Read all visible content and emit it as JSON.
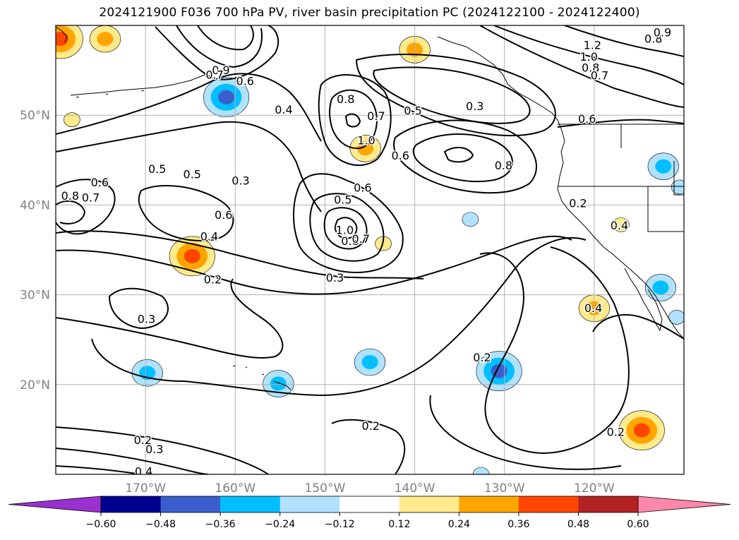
{
  "chart_data": {
    "type": "contour-map",
    "title": "2024121900 F036 700 hPa PV, river basin precipitation PC (2024122100 - 2024122400)",
    "lon_range": [
      -180,
      -110
    ],
    "lat_range": [
      10,
      60
    ],
    "grid": true,
    "lat_ticks": [
      {
        "value": 20,
        "label": "20°N"
      },
      {
        "value": 30,
        "label": "30°N"
      },
      {
        "value": 40,
        "label": "40°N"
      },
      {
        "value": 50,
        "label": "50°N"
      }
    ],
    "lon_ticks": [
      {
        "value": -170,
        "label": "170°W"
      },
      {
        "value": -160,
        "label": "160°W"
      },
      {
        "value": -150,
        "label": "150°W"
      },
      {
        "value": -140,
        "label": "140°W"
      },
      {
        "value": -130,
        "label": "130°W"
      },
      {
        "value": -120,
        "label": "120°W"
      }
    ],
    "colorbar": {
      "levels": [
        -0.6,
        -0.48,
        -0.36,
        -0.24,
        -0.12,
        0.12,
        0.24,
        0.36,
        0.48,
        0.6
      ],
      "tick_labels": [
        "−0.60",
        "−0.48",
        "−0.36",
        "−0.24",
        "−0.12",
        "0.12",
        "0.24",
        "0.36",
        "0.48",
        "0.60"
      ],
      "colors": [
        "#9b30d0",
        "#000090",
        "#3a5fcd",
        "#00bfff",
        "#b0e2ff",
        "#ffffff",
        "#ffea8c",
        "#ffa500",
        "#ff4500",
        "#b22222",
        "#ff88aa"
      ],
      "extend": "both"
    },
    "pv_contour_labels": [
      {
        "text": "0.9",
        "lon": -161.6,
        "lat": 55.0
      },
      {
        "text": "0.7",
        "lon": -162.3,
        "lat": 54.5
      },
      {
        "text": "0.6",
        "lon": -158.9,
        "lat": 53.8
      },
      {
        "text": "0.4",
        "lon": -154.6,
        "lat": 50.6
      },
      {
        "text": "0.8",
        "lon": -147.7,
        "lat": 51.8
      },
      {
        "text": "0.7",
        "lon": -144.3,
        "lat": 49.9
      },
      {
        "text": "0.5",
        "lon": -140.2,
        "lat": 50.5
      },
      {
        "text": "0.3",
        "lon": -133.3,
        "lat": 51.0
      },
      {
        "text": "1.0",
        "lon": -145.4,
        "lat": 47.2
      },
      {
        "text": "0.6",
        "lon": -141.6,
        "lat": 45.5
      },
      {
        "text": "0.8",
        "lon": -130.1,
        "lat": 44.4
      },
      {
        "text": "1.2",
        "lon": -120.2,
        "lat": 57.8
      },
      {
        "text": "1.0",
        "lon": -120.6,
        "lat": 56.5
      },
      {
        "text": "0.8",
        "lon": -120.4,
        "lat": 55.3
      },
      {
        "text": "0.7",
        "lon": -119.4,
        "lat": 54.4
      },
      {
        "text": "0.6",
        "lon": -120.8,
        "lat": 49.6
      },
      {
        "text": "0.8",
        "lon": -113.4,
        "lat": 58.5
      },
      {
        "text": "0.9",
        "lon": -112.4,
        "lat": 59.2
      },
      {
        "text": "0.5",
        "lon": -168.7,
        "lat": 44.0
      },
      {
        "text": "0.5",
        "lon": -164.8,
        "lat": 43.4
      },
      {
        "text": "0.3",
        "lon": -159.4,
        "lat": 42.7
      },
      {
        "text": "0.6",
        "lon": -175.1,
        "lat": 42.5
      },
      {
        "text": "0.7",
        "lon": -176.1,
        "lat": 40.8
      },
      {
        "text": "0.8",
        "lon": -178.4,
        "lat": 41.0
      },
      {
        "text": "0.6",
        "lon": -161.3,
        "lat": 38.9
      },
      {
        "text": "0.4",
        "lon": -162.9,
        "lat": 36.5
      },
      {
        "text": "0.5",
        "lon": -148.0,
        "lat": 40.6
      },
      {
        "text": "0.6",
        "lon": -145.8,
        "lat": 41.9
      },
      {
        "text": "1.0",
        "lon": -147.8,
        "lat": 37.2
      },
      {
        "text": "0.8",
        "lon": -147.2,
        "lat": 36.0
      },
      {
        "text": "0.7",
        "lon": -146.0,
        "lat": 36.2
      },
      {
        "text": "0.2",
        "lon": -162.5,
        "lat": 31.7
      },
      {
        "text": "0.3",
        "lon": -148.9,
        "lat": 31.9
      },
      {
        "text": "0.3",
        "lon": -169.9,
        "lat": 27.3
      },
      {
        "text": "0.2",
        "lon": -121.8,
        "lat": 40.2
      },
      {
        "text": "0.4",
        "lon": -117.2,
        "lat": 37.7
      },
      {
        "text": "0.4",
        "lon": -120.1,
        "lat": 28.5
      },
      {
        "text": "0.2",
        "lon": -132.5,
        "lat": 23.0
      },
      {
        "text": "0.2",
        "lon": -117.6,
        "lat": 14.7
      },
      {
        "text": "0.2",
        "lon": -144.9,
        "lat": 15.4
      },
      {
        "text": "0.2",
        "lon": -170.3,
        "lat": 13.8
      },
      {
        "text": "0.3",
        "lon": -169.0,
        "lat": 12.8
      },
      {
        "text": "0.4",
        "lon": -170.2,
        "lat": 10.3
      }
    ],
    "precip_pc_anomalies": [
      {
        "lon": -179.5,
        "lat": 58.5,
        "value": 0.45
      },
      {
        "lon": -174.5,
        "lat": 58.5,
        "value": 0.3
      },
      {
        "lon": -178.2,
        "lat": 49.5,
        "value": 0.15
      },
      {
        "lon": -164.8,
        "lat": 34.3,
        "value": 0.4
      },
      {
        "lon": -140.0,
        "lat": 57.3,
        "value": 0.3
      },
      {
        "lon": -145.5,
        "lat": 46.3,
        "value": 0.3
      },
      {
        "lon": -143.5,
        "lat": 35.7,
        "value": 0.2
      },
      {
        "lon": -117.0,
        "lat": 37.8,
        "value": 0.2
      },
      {
        "lon": -120.0,
        "lat": 28.5,
        "value": 0.25
      },
      {
        "lon": -114.7,
        "lat": 14.9,
        "value": 0.45
      },
      {
        "lon": -161.0,
        "lat": 52.0,
        "value": -0.42
      },
      {
        "lon": -169.8,
        "lat": 21.3,
        "value": -0.3
      },
      {
        "lon": -155.2,
        "lat": 20.1,
        "value": -0.35
      },
      {
        "lon": -145.0,
        "lat": 22.5,
        "value": -0.28
      },
      {
        "lon": -130.6,
        "lat": 21.5,
        "value": -0.4
      },
      {
        "lon": -132.6,
        "lat": 10.0,
        "value": -0.15
      },
      {
        "lon": -112.3,
        "lat": 44.3,
        "value": -0.28
      },
      {
        "lon": -110.5,
        "lat": 42.0,
        "value": -0.2
      },
      {
        "lon": -112.6,
        "lat": 30.8,
        "value": -0.26
      },
      {
        "lon": -110.8,
        "lat": 27.5,
        "value": -0.22
      },
      {
        "lon": -133.8,
        "lat": 38.4,
        "value": -0.15
      }
    ]
  }
}
